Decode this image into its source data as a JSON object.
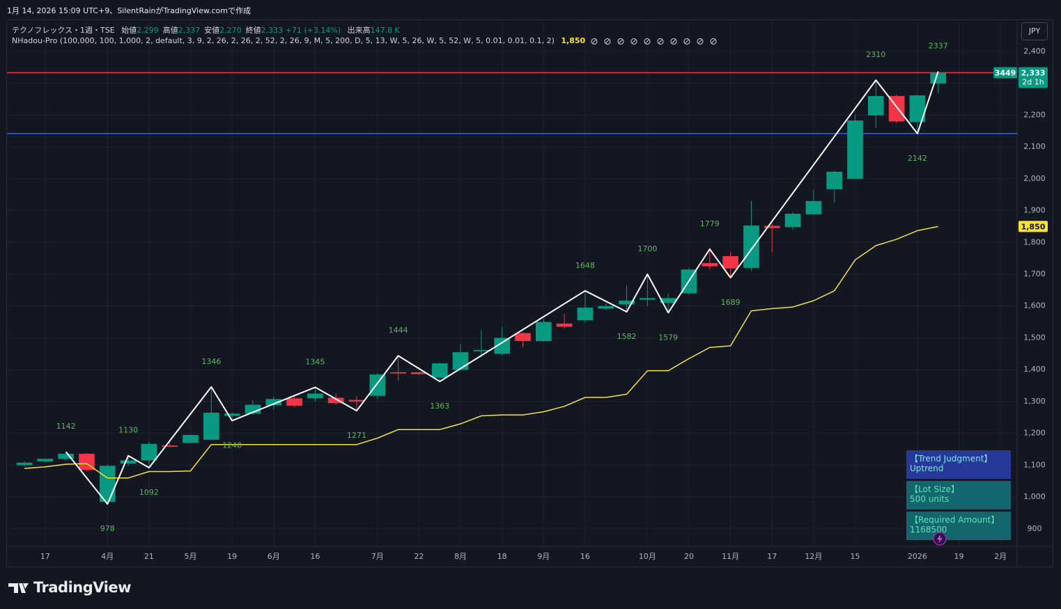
{
  "header": {
    "watermark": "1月 14, 2026 15:09 UTC+9、SilentRainがTradingView.comで作成"
  },
  "chart_data": {
    "type": "candlestick",
    "symbol": "テクノフレックス・1週・TSE",
    "ohlc_legend": [
      {
        "label": "始値",
        "value": "2,299"
      },
      {
        "label": "高値",
        "value": "2,337"
      },
      {
        "label": "安値",
        "value": "2,270"
      },
      {
        "label": "終値",
        "value": "2,333"
      }
    ],
    "change": "+71 (+3.14%)",
    "volume": {
      "label": "出来高",
      "value": "147.8 K"
    },
    "indicator": {
      "name": "NHadou-Pro (100,000, 100, 1,000, 2, default, 3, 9, 2, 26, 2, 26, 2, 52, 2, 26, 9, M, 5, 200, D, 5, 13, W, 5, 26, W, 5, 52, W, 5, 0.01, 0.01, 0.1, 2)",
      "value": "1,850"
    },
    "currency": "JPY",
    "categories": [
      null,
      "17",
      null,
      null,
      "4月",
      null,
      "21",
      null,
      "5月",
      null,
      "19",
      null,
      "6月",
      null,
      "16",
      null,
      null,
      "7月",
      null,
      "22",
      null,
      "8月",
      null,
      "18",
      null,
      "9月",
      null,
      "16",
      null,
      null,
      "10月",
      null,
      "20",
      null,
      "11月",
      null,
      "17",
      null,
      "12月",
      null,
      "15",
      null,
      null,
      "2026",
      null,
      "19",
      null,
      "2月"
    ],
    "open": [
      1100,
      1112,
      1120,
      1136,
      985,
      1105,
      1115,
      1162,
      1170,
      1180,
      1255,
      1262,
      1288,
      1310,
      1310,
      1312,
      1305,
      1318,
      1392,
      1392,
      1375,
      1400,
      1458,
      1450,
      1515,
      1490,
      1545,
      1555,
      1592,
      1605,
      1620,
      1610,
      1640,
      1735,
      1757,
      1720,
      1852,
      1848,
      1888,
      1967,
      2000,
      2199,
      2260,
      2178,
      2299,
      null,
      null,
      null
    ],
    "high": [
      1112,
      1122,
      1142,
      1138,
      1102,
      1130,
      1175,
      1170,
      1196,
      1346,
      1265,
      1305,
      1315,
      1318,
      1345,
      1325,
      1318,
      1390,
      1444,
      1394,
      1422,
      1480,
      1525,
      1535,
      1518,
      1560,
      1575,
      1648,
      1608,
      1665,
      1700,
      1640,
      1720,
      1779,
      1770,
      1930,
      1860,
      1895,
      1965,
      2025,
      2200,
      2310,
      2265,
      2265,
      2337,
      null,
      null,
      null
    ],
    "low": [
      1095,
      1108,
      1115,
      1080,
      978,
      1098,
      1092,
      1155,
      1168,
      1178,
      1240,
      1258,
      1275,
      1282,
      1300,
      1290,
      1271,
      1308,
      1365,
      1383,
      1363,
      1395,
      1440,
      1445,
      1470,
      1488,
      1530,
      1548,
      1588,
      1582,
      1600,
      1579,
      1635,
      1715,
      1689,
      1710,
      1770,
      1840,
      1885,
      1925,
      2000,
      2160,
      2175,
      2142,
      2270,
      null,
      null,
      null
    ],
    "close": [
      1108,
      1120,
      1136,
      1085,
      1098,
      1115,
      1167,
      1158,
      1195,
      1265,
      1262,
      1290,
      1308,
      1287,
      1325,
      1295,
      1300,
      1385,
      1388,
      1386,
      1420,
      1455,
      1462,
      1500,
      1490,
      1550,
      1535,
      1595,
      1600,
      1617,
      1625,
      1625,
      1715,
      1725,
      1718,
      1853,
      1845,
      1890,
      1930,
      2022,
      2183,
      2260,
      2180,
      2262,
      2333,
      null,
      null,
      null
    ],
    "up_color": "#089981",
    "down_color": "#f23645",
    "indicator_line": {
      "color": "#f7e13c",
      "values": [
        1090,
        1095,
        1103,
        1105,
        1060,
        1060,
        1080,
        1080,
        1082,
        1165,
        1165,
        1165,
        1165,
        1165,
        1165,
        1165,
        1165,
        1185,
        1212,
        1212,
        1212,
        1230,
        1255,
        1258,
        1258,
        1268,
        1285,
        1313,
        1313,
        1323,
        1397,
        1397,
        1435,
        1470,
        1475,
        1585,
        1592,
        1597,
        1617,
        1648,
        1745,
        1790,
        1810,
        1837,
        1850,
        null,
        null,
        null
      ]
    },
    "zigzag": {
      "color": "#ffffff",
      "label_color": "#5fb85a",
      "x": [
        2,
        4,
        5,
        6,
        9,
        10,
        14,
        16,
        18,
        20,
        27,
        29,
        30,
        31,
        33,
        34,
        41,
        43,
        44
      ],
      "values": [
        1142,
        978,
        1130,
        1092,
        1346,
        1240,
        1345,
        1271,
        1444,
        1363,
        1648,
        1582,
        1700,
        1579,
        1779,
        1689,
        2310,
        2142,
        2337
      ]
    },
    "hlines": [
      {
        "value": 2333,
        "color": "#f23645"
      },
      {
        "value": 2142,
        "color": "#2962ff"
      }
    ],
    "last_price": {
      "value": 2333,
      "label": "2,333",
      "countdown": "2d 1h",
      "badge": "3449"
    },
    "indicator_price": {
      "value": 1850,
      "label": "1,850"
    },
    "xlim": [
      -0.84,
      47.8
    ],
    "ylim": [
      845,
      2496
    ],
    "yticks": [
      900,
      {
        "value": 1000,
        "label": "1,000"
      },
      {
        "value": 1100,
        "label": "1,100"
      },
      {
        "value": 1200,
        "label": "1,200"
      },
      {
        "value": 1300,
        "label": "1,300"
      },
      {
        "value": 1400,
        "label": "1,400"
      },
      {
        "value": 1500,
        "label": "1,500"
      },
      {
        "value": 1600,
        "label": "1,600"
      },
      {
        "value": 1700,
        "label": "1,700"
      },
      {
        "value": 1800,
        "label": "1,800"
      },
      {
        "value": 1900,
        "label": "1,900"
      },
      {
        "value": 2000,
        "label": "2,000"
      },
      {
        "value": 2100,
        "label": "2,100"
      },
      {
        "value": 2200,
        "label": "2,200"
      },
      {
        "value": 2300,
        "label": "2,300"
      },
      {
        "value": 2400,
        "label": "2,400"
      }
    ],
    "grid": true
  },
  "table": {
    "rows": [
      [
        "【Trend Judgment】",
        "Uptrend"
      ],
      [
        "【Lot Size】",
        "500 units"
      ],
      [
        "【Required Amount】",
        "1168500"
      ]
    ]
  },
  "footer": {
    "brand": "TradingView"
  }
}
